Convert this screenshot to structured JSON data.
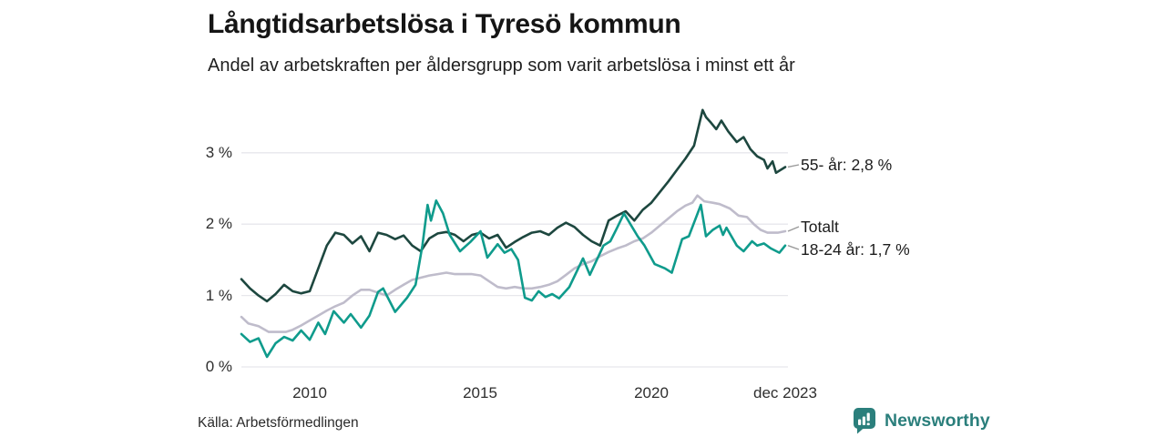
{
  "header": {
    "title": "Långtidsarbetslösa i Tyresö kommun",
    "subtitle": "Andel av arbetskraften per åldersgrupp som varit arbetslösa i minst ett år"
  },
  "chart_data": {
    "type": "line",
    "title": "Långtidsarbetslösa i Tyresö kommun",
    "subtitle": "Andel av arbetskraften per åldersgrupp som varit arbetslösa i minst ett år",
    "xlabel": "",
    "ylabel": "",
    "unit": "%",
    "grid": "horizontal",
    "legend_position": "line-end-labels-right",
    "xlim": [
      2008,
      2024
    ],
    "ylim": [
      0,
      3.75
    ],
    "x_axis": {
      "ticks": [
        {
          "label": "2010",
          "value": 2010
        },
        {
          "label": "2015",
          "value": 2015
        },
        {
          "label": "2020",
          "value": 2020
        },
        {
          "label": "dec 2023",
          "value": 2023.92
        }
      ]
    },
    "y_axis": {
      "ticks": [
        {
          "label": "3 %",
          "value": 3
        },
        {
          "label": "2 %",
          "value": 2
        },
        {
          "label": "1 %",
          "value": 1
        },
        {
          "label": "0 %",
          "value": 0
        }
      ]
    },
    "series": [
      {
        "name": "Totalt",
        "color": "#bfbccb",
        "end_label": "Totalt",
        "points": [
          [
            2008.0,
            0.7
          ],
          [
            2008.2,
            0.61
          ],
          [
            2008.5,
            0.57
          ],
          [
            2008.8,
            0.49
          ],
          [
            2009.3,
            0.49
          ],
          [
            2009.5,
            0.52
          ],
          [
            2009.75,
            0.58
          ],
          [
            2010.0,
            0.65
          ],
          [
            2010.25,
            0.72
          ],
          [
            2010.5,
            0.79
          ],
          [
            2010.75,
            0.85
          ],
          [
            2011.0,
            0.9
          ],
          [
            2011.25,
            1.0
          ],
          [
            2011.5,
            1.08
          ],
          [
            2011.75,
            1.08
          ],
          [
            2012.0,
            1.04
          ],
          [
            2012.25,
            1.0
          ],
          [
            2012.5,
            1.08
          ],
          [
            2012.75,
            1.15
          ],
          [
            2013.0,
            1.22
          ],
          [
            2013.25,
            1.25
          ],
          [
            2013.5,
            1.28
          ],
          [
            2013.75,
            1.3
          ],
          [
            2014.0,
            1.32
          ],
          [
            2014.25,
            1.3
          ],
          [
            2014.5,
            1.3
          ],
          [
            2014.75,
            1.3
          ],
          [
            2015.0,
            1.28
          ],
          [
            2015.25,
            1.2
          ],
          [
            2015.5,
            1.12
          ],
          [
            2015.75,
            1.1
          ],
          [
            2016.0,
            1.12
          ],
          [
            2016.25,
            1.1
          ],
          [
            2016.5,
            1.1
          ],
          [
            2016.75,
            1.12
          ],
          [
            2017.0,
            1.15
          ],
          [
            2017.25,
            1.2
          ],
          [
            2017.5,
            1.29
          ],
          [
            2017.75,
            1.38
          ],
          [
            2018.0,
            1.44
          ],
          [
            2018.25,
            1.48
          ],
          [
            2018.5,
            1.55
          ],
          [
            2018.75,
            1.61
          ],
          [
            2019.0,
            1.66
          ],
          [
            2019.25,
            1.7
          ],
          [
            2019.5,
            1.76
          ],
          [
            2019.75,
            1.8
          ],
          [
            2020.0,
            1.88
          ],
          [
            2020.25,
            1.98
          ],
          [
            2020.5,
            2.08
          ],
          [
            2020.75,
            2.18
          ],
          [
            2021.0,
            2.26
          ],
          [
            2021.2,
            2.3
          ],
          [
            2021.35,
            2.4
          ],
          [
            2021.55,
            2.32
          ],
          [
            2021.8,
            2.3
          ],
          [
            2022.0,
            2.28
          ],
          [
            2022.3,
            2.22
          ],
          [
            2022.55,
            2.12
          ],
          [
            2022.8,
            2.1
          ],
          [
            2023.0,
            2.0
          ],
          [
            2023.2,
            1.92
          ],
          [
            2023.4,
            1.88
          ],
          [
            2023.7,
            1.88
          ],
          [
            2023.92,
            1.9
          ]
        ]
      },
      {
        "name": "55- år",
        "color": "#1d473f",
        "end_label": "55- år: 2,8 %",
        "last_value": "2,8 %",
        "points": [
          [
            2008.0,
            1.23
          ],
          [
            2008.25,
            1.1
          ],
          [
            2008.5,
            1.0
          ],
          [
            2008.75,
            0.92
          ],
          [
            2009.0,
            1.02
          ],
          [
            2009.25,
            1.15
          ],
          [
            2009.5,
            1.06
          ],
          [
            2009.75,
            1.03
          ],
          [
            2010.0,
            1.06
          ],
          [
            2010.25,
            1.38
          ],
          [
            2010.5,
            1.7
          ],
          [
            2010.75,
            1.88
          ],
          [
            2011.0,
            1.85
          ],
          [
            2011.25,
            1.73
          ],
          [
            2011.5,
            1.83
          ],
          [
            2011.75,
            1.62
          ],
          [
            2012.0,
            1.88
          ],
          [
            2012.25,
            1.85
          ],
          [
            2012.5,
            1.79
          ],
          [
            2012.75,
            1.84
          ],
          [
            2013.0,
            1.7
          ],
          [
            2013.25,
            1.62
          ],
          [
            2013.5,
            1.8
          ],
          [
            2013.75,
            1.87
          ],
          [
            2014.0,
            1.89
          ],
          [
            2014.25,
            1.85
          ],
          [
            2014.5,
            1.76
          ],
          [
            2014.75,
            1.85
          ],
          [
            2015.0,
            1.88
          ],
          [
            2015.25,
            1.8
          ],
          [
            2015.5,
            1.85
          ],
          [
            2015.75,
            1.67
          ],
          [
            2016.0,
            1.75
          ],
          [
            2016.25,
            1.82
          ],
          [
            2016.5,
            1.88
          ],
          [
            2016.75,
            1.9
          ],
          [
            2017.0,
            1.85
          ],
          [
            2017.25,
            1.95
          ],
          [
            2017.5,
            2.02
          ],
          [
            2017.75,
            1.96
          ],
          [
            2018.0,
            1.85
          ],
          [
            2018.25,
            1.76
          ],
          [
            2018.5,
            1.7
          ],
          [
            2018.75,
            2.05
          ],
          [
            2019.0,
            2.12
          ],
          [
            2019.25,
            2.18
          ],
          [
            2019.5,
            2.05
          ],
          [
            2019.75,
            2.2
          ],
          [
            2020.0,
            2.3
          ],
          [
            2020.25,
            2.45
          ],
          [
            2020.5,
            2.6
          ],
          [
            2020.75,
            2.76
          ],
          [
            2021.0,
            2.92
          ],
          [
            2021.25,
            3.1
          ],
          [
            2021.5,
            3.6
          ],
          [
            2021.6,
            3.5
          ],
          [
            2021.75,
            3.42
          ],
          [
            2021.9,
            3.33
          ],
          [
            2022.05,
            3.45
          ],
          [
            2022.25,
            3.3
          ],
          [
            2022.5,
            3.15
          ],
          [
            2022.7,
            3.22
          ],
          [
            2022.9,
            3.05
          ],
          [
            2023.1,
            2.95
          ],
          [
            2023.3,
            2.9
          ],
          [
            2023.4,
            2.78
          ],
          [
            2023.55,
            2.88
          ],
          [
            2023.65,
            2.72
          ],
          [
            2023.92,
            2.8
          ]
        ]
      },
      {
        "name": "18-24 år",
        "color": "#0f9b8c",
        "end_label": "18-24 år: 1,7 %",
        "last_value": "1,7 %",
        "points": [
          [
            2008.0,
            0.46
          ],
          [
            2008.25,
            0.35
          ],
          [
            2008.5,
            0.4
          ],
          [
            2008.75,
            0.14
          ],
          [
            2009.0,
            0.33
          ],
          [
            2009.25,
            0.42
          ],
          [
            2009.5,
            0.37
          ],
          [
            2009.75,
            0.51
          ],
          [
            2010.0,
            0.38
          ],
          [
            2010.25,
            0.62
          ],
          [
            2010.45,
            0.46
          ],
          [
            2010.7,
            0.78
          ],
          [
            2011.0,
            0.62
          ],
          [
            2011.2,
            0.74
          ],
          [
            2011.5,
            0.55
          ],
          [
            2011.75,
            0.72
          ],
          [
            2012.0,
            1.05
          ],
          [
            2012.15,
            1.1
          ],
          [
            2012.5,
            0.77
          ],
          [
            2012.85,
            0.97
          ],
          [
            2013.1,
            1.15
          ],
          [
            2013.3,
            1.7
          ],
          [
            2013.45,
            2.27
          ],
          [
            2013.55,
            2.05
          ],
          [
            2013.7,
            2.33
          ],
          [
            2013.9,
            2.15
          ],
          [
            2014.1,
            1.85
          ],
          [
            2014.4,
            1.62
          ],
          [
            2014.7,
            1.75
          ],
          [
            2015.0,
            1.9
          ],
          [
            2015.2,
            1.53
          ],
          [
            2015.5,
            1.72
          ],
          [
            2015.7,
            1.6
          ],
          [
            2015.9,
            1.65
          ],
          [
            2016.1,
            1.5
          ],
          [
            2016.3,
            0.97
          ],
          [
            2016.5,
            0.93
          ],
          [
            2016.7,
            1.06
          ],
          [
            2016.9,
            0.98
          ],
          [
            2017.1,
            1.02
          ],
          [
            2017.3,
            0.96
          ],
          [
            2017.6,
            1.12
          ],
          [
            2018.0,
            1.52
          ],
          [
            2018.2,
            1.29
          ],
          [
            2018.6,
            1.7
          ],
          [
            2018.8,
            1.76
          ],
          [
            2019.0,
            1.95
          ],
          [
            2019.2,
            2.15
          ],
          [
            2019.6,
            1.83
          ],
          [
            2019.8,
            1.7
          ],
          [
            2020.1,
            1.44
          ],
          [
            2020.4,
            1.38
          ],
          [
            2020.6,
            1.32
          ],
          [
            2020.9,
            1.79
          ],
          [
            2021.1,
            1.83
          ],
          [
            2021.45,
            2.27
          ],
          [
            2021.6,
            1.83
          ],
          [
            2021.8,
            1.92
          ],
          [
            2022.0,
            1.98
          ],
          [
            2022.1,
            1.85
          ],
          [
            2022.2,
            1.95
          ],
          [
            2022.5,
            1.7
          ],
          [
            2022.7,
            1.62
          ],
          [
            2022.95,
            1.76
          ],
          [
            2023.1,
            1.7
          ],
          [
            2023.3,
            1.73
          ],
          [
            2023.5,
            1.66
          ],
          [
            2023.75,
            1.6
          ],
          [
            2023.92,
            1.7
          ]
        ]
      }
    ],
    "colors": {
      "grid": "#e7e7ec",
      "series_55": "#1d473f",
      "series_totalt": "#bfbccb",
      "series_1824": "#0f9b8c",
      "leader": "#999999"
    }
  },
  "footer": {
    "source": "Källa: Arbetsförmedlingen",
    "logo_text": "Newsworthy",
    "logo_color": "#2b7f7c"
  }
}
